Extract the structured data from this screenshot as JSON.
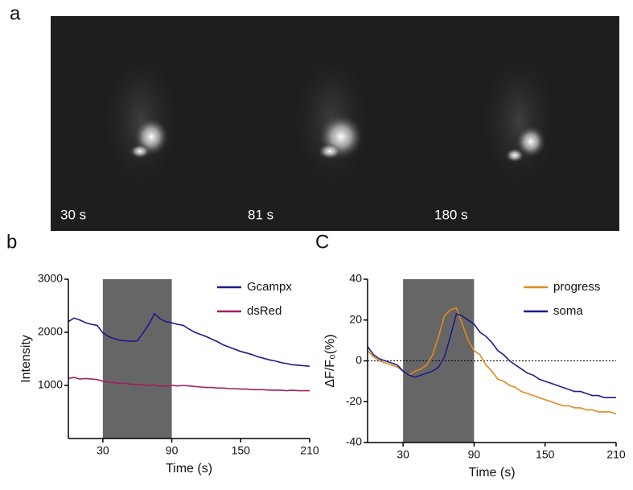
{
  "panels": {
    "a": "a",
    "b": "b",
    "c": "C"
  },
  "images": [
    {
      "label": "30 s"
    },
    {
      "label": "81 s"
    },
    {
      "label": "180 s"
    }
  ],
  "chart_data": [
    {
      "type": "line",
      "xlabel": "Time (s)",
      "ylabel": "Intensity",
      "xlim": [
        0,
        210
      ],
      "xticks": [
        30,
        90,
        150,
        210
      ],
      "ylim": [
        0,
        3000
      ],
      "yticks": [
        1000,
        2000,
        3000
      ],
      "shaded_interval": [
        30,
        90
      ],
      "legend": "top-right",
      "x": [
        0,
        5,
        10,
        15,
        20,
        25,
        30,
        35,
        40,
        45,
        50,
        55,
        60,
        65,
        70,
        75,
        80,
        85,
        90,
        95,
        100,
        105,
        110,
        115,
        120,
        125,
        130,
        135,
        140,
        145,
        150,
        155,
        160,
        165,
        170,
        175,
        180,
        185,
        190,
        195,
        200,
        205,
        210
      ],
      "series": [
        {
          "name": "Gcampx",
          "color": "#1c1c8a",
          "values": [
            2200,
            2270,
            2230,
            2180,
            2150,
            2130,
            1990,
            1920,
            1880,
            1850,
            1840,
            1830,
            1840,
            1990,
            2150,
            2350,
            2250,
            2200,
            2180,
            2150,
            2130,
            2060,
            2000,
            1960,
            1920,
            1870,
            1820,
            1760,
            1720,
            1680,
            1640,
            1610,
            1580,
            1540,
            1510,
            1480,
            1460,
            1430,
            1410,
            1390,
            1380,
            1370,
            1360
          ]
        },
        {
          "name": "dsRed",
          "color": "#a3205c",
          "values": [
            1130,
            1150,
            1120,
            1130,
            1120,
            1110,
            1080,
            1060,
            1050,
            1040,
            1040,
            1020,
            1020,
            1010,
            1000,
            1010,
            980,
            990,
            1000,
            990,
            1000,
            990,
            980,
            970,
            960,
            960,
            950,
            950,
            940,
            940,
            930,
            930,
            920,
            920,
            920,
            910,
            910,
            910,
            900,
            910,
            900,
            900,
            900
          ]
        }
      ]
    },
    {
      "type": "line",
      "xlabel": "Time (s)",
      "ylabel": "ΔF/F₀(%)",
      "xlim": [
        0,
        210
      ],
      "xticks": [
        30,
        90,
        150,
        210
      ],
      "ylim": [
        -40,
        40
      ],
      "yticks": [
        -40,
        -20,
        0,
        20,
        40
      ],
      "shaded_interval": [
        30,
        90
      ],
      "hline": 0,
      "legend": "top-right",
      "x": [
        0,
        5,
        10,
        15,
        20,
        25,
        30,
        35,
        40,
        45,
        50,
        55,
        60,
        65,
        70,
        75,
        80,
        85,
        90,
        95,
        100,
        105,
        110,
        115,
        120,
        125,
        130,
        135,
        140,
        145,
        150,
        155,
        160,
        165,
        170,
        175,
        180,
        185,
        190,
        195,
        200,
        205,
        210
      ],
      "series": [
        {
          "name": "progress",
          "color": "#e08a1e",
          "values": [
            5,
            2,
            0,
            -1,
            -2,
            -3,
            -5,
            -7,
            -5,
            -4,
            -2,
            3,
            12,
            22,
            25,
            26,
            18,
            10,
            5,
            3,
            -2,
            -5,
            -9,
            -10,
            -12,
            -13,
            -15,
            -16,
            -17,
            -18,
            -19,
            -20,
            -21,
            -22,
            -22,
            -23,
            -23,
            -24,
            -24,
            -25,
            -25,
            -25,
            -26
          ]
        },
        {
          "name": "soma",
          "color": "#1c1c8a",
          "values": [
            7,
            3,
            1,
            0,
            -1,
            -2,
            -5,
            -7,
            -8,
            -7,
            -6,
            -5,
            -3,
            2,
            12,
            23,
            22,
            20,
            18,
            14,
            12,
            9,
            5,
            3,
            0,
            -2,
            -4,
            -6,
            -7,
            -9,
            -10,
            -11,
            -12,
            -13,
            -14,
            -15,
            -15,
            -16,
            -17,
            -17,
            -18,
            -18,
            -18
          ]
        }
      ]
    }
  ]
}
